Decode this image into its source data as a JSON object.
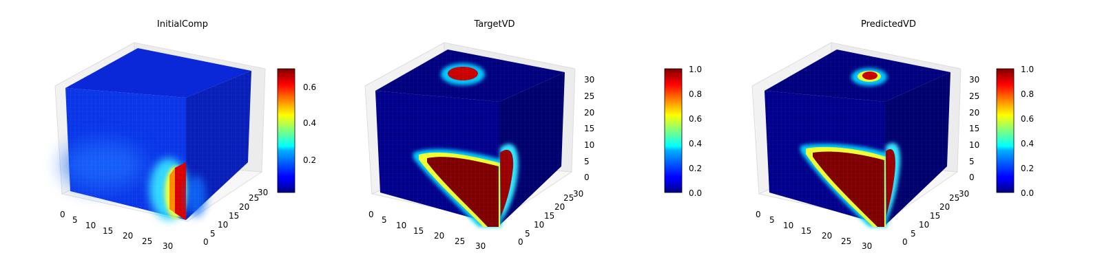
{
  "chart_data": [
    {
      "type": "voxel-3d",
      "title": "InitialComp",
      "x_ticks": [
        "0",
        "5",
        "10",
        "15",
        "20",
        "25",
        "30"
      ],
      "y_ticks": [
        "0",
        "5",
        "10",
        "15",
        "20",
        "25",
        "30"
      ],
      "z_ticks": [],
      "colorbar": {
        "min": 0.0,
        "max": 0.7,
        "ticks": [
          "0.2",
          "0.4",
          "0.6"
        ],
        "tick_values": [
          0.2,
          0.4,
          0.6
        ],
        "colormap": "jet"
      },
      "grid": true
    },
    {
      "type": "voxel-3d",
      "title": "TargetVD",
      "x_ticks": [
        "0",
        "5",
        "10",
        "15",
        "20",
        "25",
        "30"
      ],
      "y_ticks": [
        "0",
        "5",
        "10",
        "15",
        "20",
        "25",
        "30"
      ],
      "z_ticks": [
        "0",
        "5",
        "10",
        "15",
        "20",
        "25",
        "30"
      ],
      "colorbar": {
        "min": 0.0,
        "max": 1.0,
        "ticks": [
          "0.0",
          "0.2",
          "0.4",
          "0.6",
          "0.8",
          "1.0"
        ],
        "tick_values": [
          0,
          0.2,
          0.4,
          0.6,
          0.8,
          1.0
        ],
        "colormap": "jet"
      },
      "grid": true
    },
    {
      "type": "voxel-3d",
      "title": "PredictedVD",
      "x_ticks": [
        "0",
        "5",
        "10",
        "15",
        "20",
        "25",
        "30"
      ],
      "y_ticks": [
        "0",
        "5",
        "10",
        "15",
        "20",
        "25",
        "30"
      ],
      "z_ticks": [
        "0",
        "5",
        "10",
        "15",
        "20",
        "25",
        "30"
      ],
      "colorbar": {
        "min": 0.0,
        "max": 1.0,
        "ticks": [
          "0.0",
          "0.2",
          "0.4",
          "0.6",
          "0.8",
          "1.0"
        ],
        "tick_values": [
          0,
          0.2,
          0.4,
          0.6,
          0.8,
          1.0
        ],
        "colormap": "jet"
      },
      "grid": true
    }
  ]
}
